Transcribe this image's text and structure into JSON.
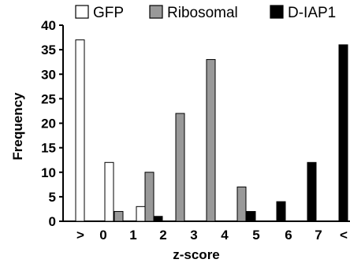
{
  "chart_data": {
    "type": "bar",
    "title": "",
    "xlabel": "z-score",
    "ylabel": "Frequency",
    "categories": [
      ">",
      "0",
      "1",
      "2",
      "3",
      "4",
      "5",
      "6",
      "7",
      "<"
    ],
    "ylim": [
      0,
      40
    ],
    "yticks": [
      0,
      5,
      10,
      15,
      20,
      25,
      30,
      35,
      40
    ],
    "grid": false,
    "legend_position": "top",
    "series": [
      {
        "name": "GFP",
        "color": "#ffffff",
        "values": [
          37,
          12,
          3,
          0,
          0,
          0,
          0,
          0,
          0,
          0
        ]
      },
      {
        "name": "Ribosomal",
        "color": "#999999",
        "values": [
          0,
          2,
          10,
          22,
          33,
          7,
          0,
          0,
          0,
          0
        ]
      },
      {
        "name": "D-IAP1",
        "color": "#000000",
        "values": [
          0,
          0,
          1,
          0,
          0,
          2,
          4,
          12,
          36,
          0
        ]
      }
    ],
    "bar_layout": [
      {
        "series": 0,
        "category": 0
      },
      {
        "series": 0,
        "category": 1
      },
      {
        "series": 1,
        "category": 1
      },
      {
        "series": 0,
        "category": 2
      },
      {
        "series": 1,
        "category": 2
      },
      {
        "series": 2,
        "category": 2
      },
      {
        "series": 1,
        "category": 3
      },
      {
        "series": 1,
        "category": 4
      },
      {
        "series": 1,
        "category": 5
      },
      {
        "series": 2,
        "category": 5
      },
      {
        "series": 2,
        "category": 6
      },
      {
        "series": 2,
        "category": 7
      },
      {
        "series": 2,
        "category": 8
      }
    ]
  }
}
